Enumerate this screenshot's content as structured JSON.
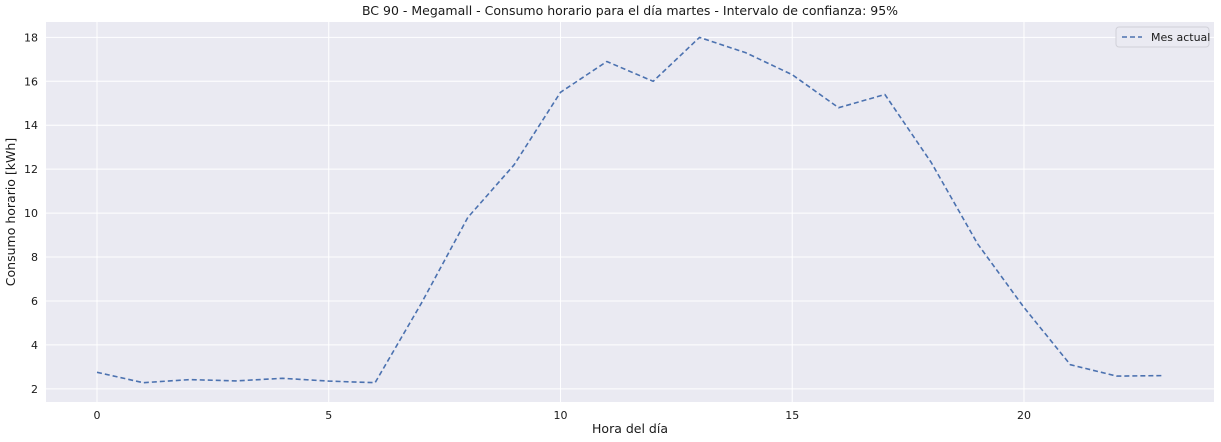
{
  "chart_data": {
    "type": "line",
    "title": "BC 90 - Megamall - Consumo horario para el día martes - Intervalo de confianza: 95%",
    "xlabel": "Hora del día",
    "ylabel": "Consumo horario [kWh]",
    "xlim": [
      -1.1,
      24.1
    ],
    "ylim": [
      1.4,
      18.7
    ],
    "xticks": [
      0,
      5,
      10,
      15,
      20
    ],
    "yticks": [
      2,
      4,
      6,
      8,
      10,
      12,
      14,
      16,
      18
    ],
    "grid": true,
    "legend_position": "top-right",
    "colors": {
      "background": "#eaeaf2",
      "grid": "#ffffff",
      "series": "#4c72b0"
    },
    "series": [
      {
        "name": "Mes actual",
        "style": "dashed",
        "x": [
          0,
          1,
          2,
          3,
          4,
          5,
          6,
          7,
          8,
          9,
          10,
          11,
          12,
          13,
          14,
          15,
          16,
          17,
          18,
          19,
          20,
          21,
          22,
          23
        ],
        "y": [
          2.75,
          2.28,
          2.42,
          2.36,
          2.48,
          2.35,
          2.28,
          5.9,
          9.8,
          12.2,
          15.5,
          16.9,
          16.0,
          18.0,
          17.3,
          16.3,
          14.8,
          15.4,
          12.3,
          8.6,
          5.7,
          3.1,
          2.58,
          2.6
        ]
      }
    ]
  }
}
